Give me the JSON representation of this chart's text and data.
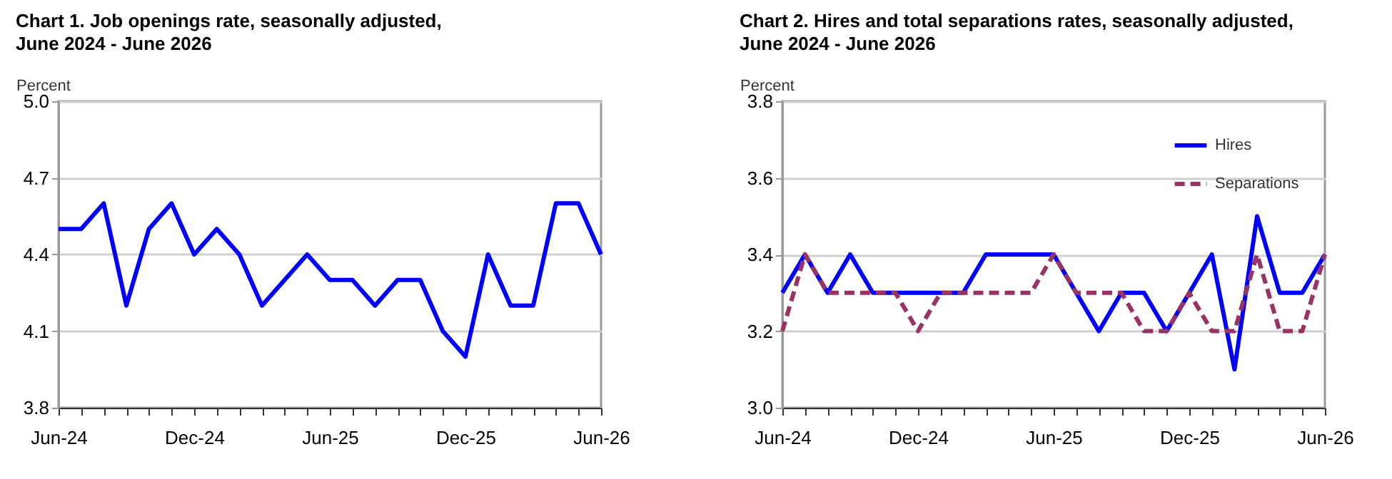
{
  "chart_data": [
    {
      "type": "line",
      "title": "Chart 1. Job openings rate, seasonally adjusted,\nJune 2024 - June 2026",
      "ylabel": "Percent",
      "categories": [
        "Jun-24",
        null,
        null,
        null,
        null,
        null,
        "Dec-24",
        null,
        null,
        null,
        null,
        null,
        "Jun-25",
        null,
        null,
        null,
        null,
        null,
        "Dec-25",
        null,
        null,
        null,
        null,
        null,
        "Jun-26"
      ],
      "values": [
        4.5,
        4.5,
        4.6,
        4.2,
        4.5,
        4.6,
        4.4,
        4.5,
        4.4,
        4.2,
        4.3,
        4.4,
        4.3,
        4.3,
        4.2,
        4.3,
        4.3,
        4.1,
        4.0,
        4.4,
        4.2,
        4.2,
        4.6,
        4.6,
        4.4
      ],
      "color": "#0000ff",
      "ylim": [
        3.8,
        5.0
      ],
      "yticks": [
        3.8,
        4.1,
        4.4,
        4.7,
        {
          "value": 5.0,
          "label": "5.0"
        }
      ],
      "grid": "y"
    },
    {
      "type": "line",
      "title": "Chart 2. Hires and total separations rates, seasonally adjusted,\nJune 2024 - June 2026",
      "ylabel": "Percent",
      "categories": [
        "Jun-24",
        null,
        null,
        null,
        null,
        null,
        "Dec-24",
        null,
        null,
        null,
        null,
        null,
        "Jun-25",
        null,
        null,
        null,
        null,
        null,
        "Dec-25",
        null,
        null,
        null,
        null,
        null,
        "Jun-26"
      ],
      "series": [
        {
          "name": "Hires",
          "color": "#0000ff",
          "line_style": "solid",
          "values": [
            3.3,
            3.4,
            3.3,
            3.4,
            3.3,
            3.3,
            3.3,
            3.3,
            3.3,
            3.4,
            3.4,
            3.4,
            3.4,
            3.3,
            3.2,
            3.3,
            3.3,
            3.2,
            3.3,
            3.4,
            3.1,
            3.5,
            3.3,
            3.3,
            3.4
          ]
        },
        {
          "name": "Separations",
          "color": "#993366",
          "line_style": "dashed",
          "values": [
            3.2,
            3.4,
            3.3,
            3.3,
            3.3,
            3.3,
            3.2,
            3.3,
            3.3,
            3.3,
            3.3,
            3.3,
            3.4,
            3.3,
            3.3,
            3.3,
            3.2,
            3.2,
            3.3,
            3.2,
            3.2,
            3.4,
            3.2,
            3.2,
            3.4
          ]
        }
      ],
      "ylim": [
        3.0,
        3.8
      ],
      "yticks": [
        {
          "value": 3.0,
          "label": "3.0"
        },
        3.2,
        3.4,
        3.6,
        3.8
      ],
      "grid": "y",
      "legend": "top right"
    }
  ]
}
